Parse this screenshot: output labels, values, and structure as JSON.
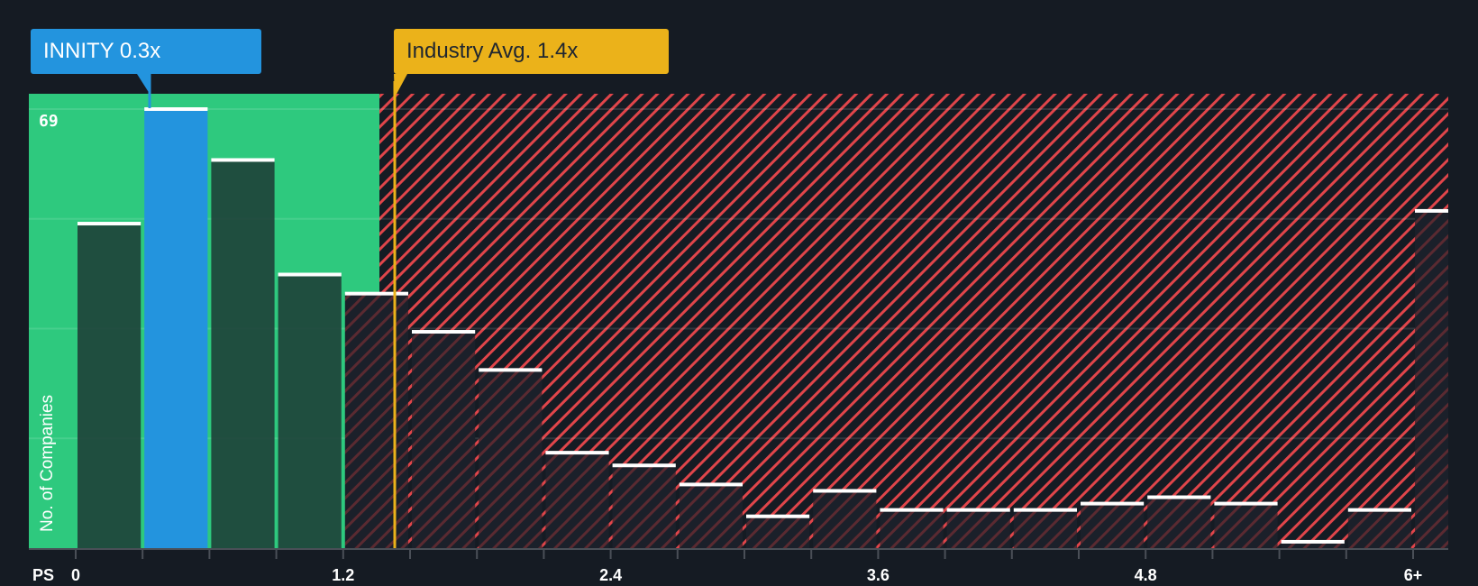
{
  "chart_data": {
    "type": "bar",
    "title": "",
    "xlabel": "PS",
    "ylabel": "No. of Companies",
    "x_tick_labels": [
      "0",
      "1.2",
      "2.4",
      "3.6",
      "4.8",
      "6+"
    ],
    "bin_width": 0.3,
    "categories": [
      "0-0.3",
      "0.3-0.6",
      "0.6-0.9",
      "0.9-1.2",
      "1.2-1.5",
      "1.5-1.8",
      "1.8-2.1",
      "2.1-2.4",
      "2.4-2.7",
      "2.7-3.0",
      "3.0-3.3",
      "3.3-3.6",
      "3.6-3.9",
      "3.9-4.2",
      "4.2-4.5",
      "4.5-4.8",
      "4.8-5.1",
      "5.1-5.4",
      "5.4-5.7",
      "5.7-6.0",
      "6+"
    ],
    "values": [
      51,
      69,
      61,
      43,
      40,
      34,
      28,
      15,
      13,
      10,
      5,
      9,
      6,
      6,
      6,
      7,
      8,
      7,
      1,
      6,
      53
    ],
    "highlight_index": 1,
    "ylim": [
      0,
      69
    ],
    "y_max_label": "69",
    "grid": true,
    "annotations": [
      {
        "label": "INNITY 0.3x",
        "x": 0.3,
        "color": "#2394de"
      },
      {
        "label": "Industry Avg. 1.4x",
        "x": 1.4,
        "color": "#ebb21a"
      }
    ],
    "regions": [
      {
        "name": "below-average",
        "x_range": [
          0,
          1.4
        ],
        "color": "#2ec97e"
      },
      {
        "name": "above-average",
        "x_range": [
          1.4,
          "6+"
        ],
        "color": "#e0454a",
        "pattern": "diagonal-hatch"
      }
    ]
  },
  "callouts": {
    "company": "INNITY 0.3x",
    "industry": "Industry Avg. 1.4x"
  },
  "axis": {
    "y_label": "No. of Companies",
    "y_max": "69",
    "x_prefix": "PS",
    "x_ticks": [
      "0",
      "1.2",
      "2.4",
      "3.6",
      "4.8",
      "6+"
    ]
  },
  "colors": {
    "background": "#151b23",
    "green_zone": "#2ec97e",
    "company": "#2394de",
    "industry": "#ebb21a",
    "hatch": "#e0454a",
    "bar_dark_green": "#1f4d40",
    "bar_dark": "#1b202a"
  }
}
